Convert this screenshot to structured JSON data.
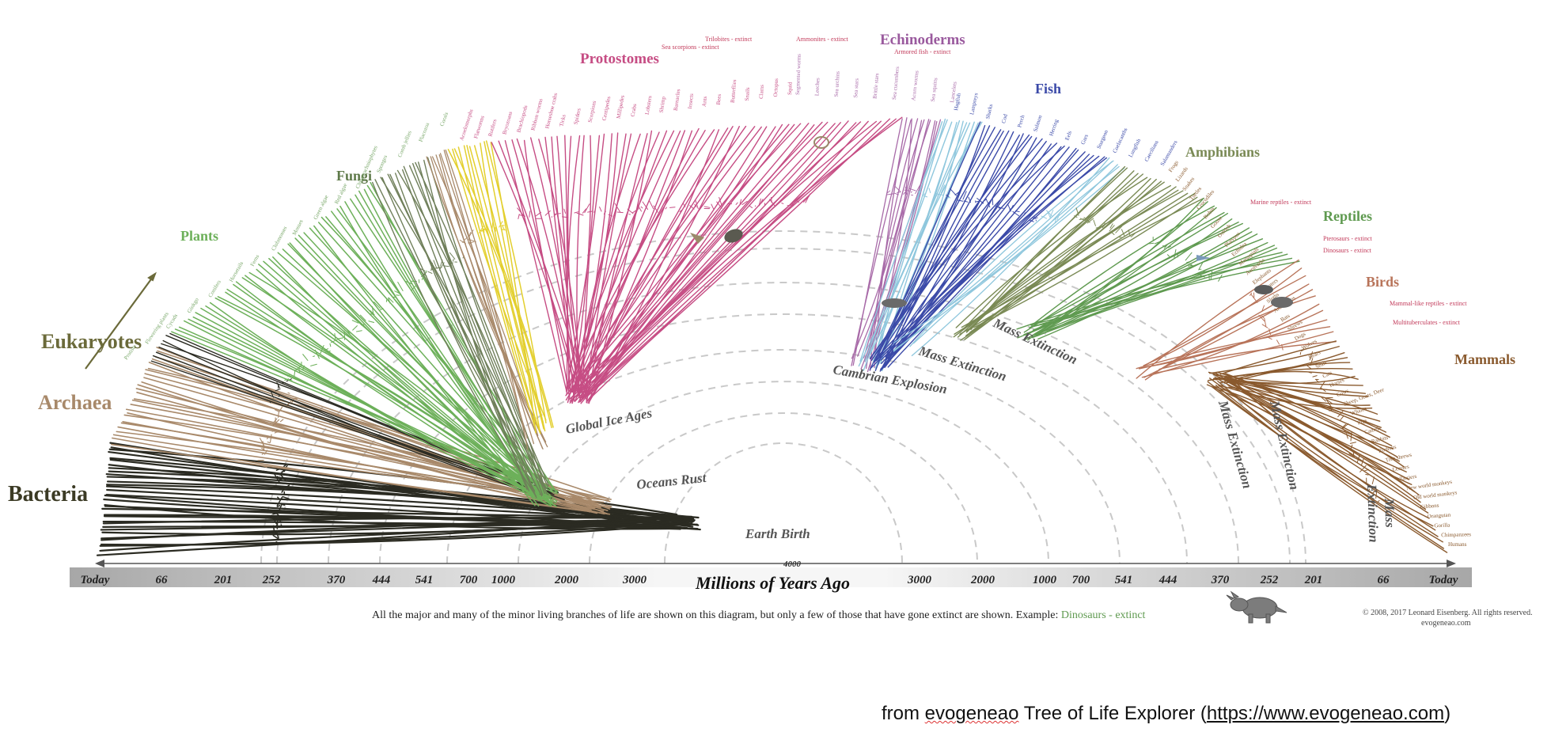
{
  "groups": {
    "bacteria": "Bacteria",
    "archaea": "Archaea",
    "eukaryotes": "Eukaryotes",
    "plants": "Plants",
    "fungi": "Fungi",
    "protostomes": "Protostomes",
    "echinoderms": "Echinoderms",
    "fish": "Fish",
    "amphibians": "Amphibians",
    "reptiles": "Reptiles",
    "birds": "Birds",
    "mammals": "Mammals"
  },
  "colors": {
    "bacteria": "#2b2b22",
    "archaea": "#a8896a",
    "eukaryotes": "#6b6a3a",
    "plants": "#6db05a",
    "fungi": "#6f7f5a",
    "yellow_clade": "#e3cf2e",
    "protostomes": "#c64d84",
    "echinoderms": "#a86aa8",
    "lightblue": "#8fc7dd",
    "fish": "#3b4aa8",
    "amphibians": "#7a8a55",
    "reptiles": "#5f9a50",
    "birds": "#b8745a",
    "mammals": "#8a5a2e",
    "extinct": "#c23a5a"
  },
  "extinct_notes": {
    "trilobites": "Trilobites - extinct",
    "sea_scorpions": "Sea scorpions - extinct",
    "ammonites": "Ammonites - extinct",
    "armored_fish": "Armored fish - extinct",
    "marine_reptiles": "Marine reptiles - extinct",
    "pterosaurs": "Pterosaurs - extinct",
    "dinosaurs": "Dinosaurs - extinct",
    "mammal_like_reptiles": "Mammal-like reptiles - extinct",
    "multituberculates": "Multituberculates - extinct"
  },
  "leaf_labels": {
    "left_fan": [
      "Protists",
      "Flowering plants",
      "Cycads",
      "Ginkgo",
      "Conifers",
      "Horsetails",
      "Ferns",
      "Clubmosses",
      "Mosses",
      "Green algae",
      "Red algae",
      "Chlorarachniophytes",
      "Sponges",
      "Comb jellies",
      "Placozoa",
      "Corals"
    ],
    "protostome_top": [
      "Acoelomorphs",
      "Flatworms",
      "Rotifers",
      "Bryozoans",
      "Brachiopods",
      "Ribbon worms",
      "Horseshoe crabs",
      "Ticks",
      "Spiders",
      "Scorpions",
      "Centipedes",
      "Millipedes",
      "Crabs",
      "Lobsters",
      "Shrimp",
      "Barnacles",
      "Insects",
      "Ants",
      "Bees",
      "Butterflies",
      "Snails",
      "Clams",
      "Octopus",
      "Squid"
    ],
    "echinoderm_top": [
      "Segmented worms",
      "Leeches",
      "Sea urchins",
      "Sea stars",
      "Brittle stars",
      "Sea cucumbers",
      "Acorn worms",
      "Sea squirts",
      "Lancelets"
    ],
    "fish_top": [
      "Hagfish",
      "Lampreys",
      "Sharks",
      "Cod",
      "Perch",
      "Salmon",
      "Herring",
      "Eels",
      "Gars",
      "Sturgeon",
      "Coelacanths",
      "Lungfish",
      "Caecilians",
      "Salamanders"
    ],
    "tetrapods": [
      "Frogs",
      "Lizards",
      "Snakes",
      "Turtles",
      "Crocodiles",
      "Robin",
      "Goose",
      "Ostrich",
      "Platypus",
      "Echidna",
      "Marsupials",
      "Aardvarks",
      "Elephants",
      "Anteaters",
      "Sloths",
      "Armadillos",
      "Bats",
      "Shrews",
      "Dogs",
      "Wolves",
      "Bears",
      "Seals",
      "Cats",
      "Horses",
      "Cows",
      "Sheep, Goats, Deer",
      "Whales",
      "Pigs",
      "Camels",
      "Rabbits",
      "Rodents",
      "Tree shrews",
      "Lemurs",
      "Tarsiers",
      "New world monkeys",
      "Old world monkeys",
      "Gibbons",
      "Orangutan",
      "Gorilla",
      "Chimpanzees",
      "Humans"
    ]
  },
  "events": {
    "global_ice_ages": "Global Ice Ages",
    "cambrian_explosion": "Cambrian Explosion",
    "mass_extinction": "Mass Extinction",
    "mass_extinction_split_1": "Mass",
    "mass_extinction_split_2": "Extinction",
    "oceans_rust": "Oceans Rust",
    "earth_birth": "Earth Birth"
  },
  "axis": {
    "title": "Millions of Years Ago",
    "center_tick": "4000",
    "left_ticks": [
      "Today",
      "66",
      "201",
      "252",
      "370",
      "444",
      "541",
      "700",
      "1000",
      "2000",
      "3000"
    ],
    "right_ticks": [
      "3000",
      "2000",
      "1000",
      "700",
      "541",
      "444",
      "370",
      "252",
      "201",
      "66",
      "Today"
    ]
  },
  "caption": {
    "main": "All the major and many of the minor living branches of life are shown on this diagram, but only a few of those that have gone extinct are shown. Example: ",
    "example": "Dinosaurs - extinct"
  },
  "copyright": {
    "line1": "© 2008, 2017 Leonard Eisenberg. All rights reserved.",
    "line2": "evogeneao.com"
  },
  "source": {
    "prefix": "from ",
    "name": "evogeneao",
    "middle": " Tree of Life Explorer (",
    "url": "https://www.evogeneao.com",
    "suffix": ")"
  }
}
